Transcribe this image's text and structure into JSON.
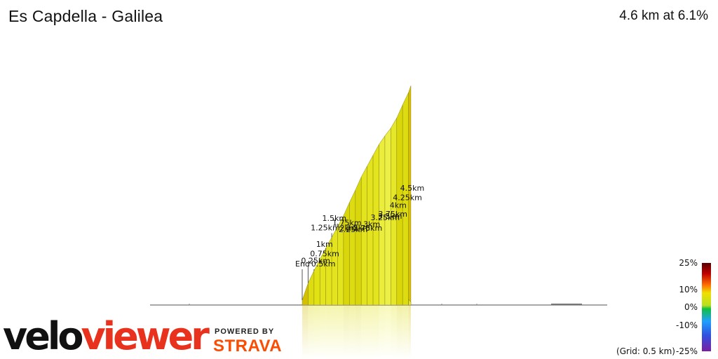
{
  "header": {
    "title": "Es Capdella - Galilea",
    "summary": "4.6 km at 6.1%"
  },
  "chart_data": {
    "type": "area",
    "title": "Es Capdella - Galilea",
    "direction": "reversed, start on the right, End at the left",
    "distance_km": [
      0,
      0.25,
      0.5,
      0.75,
      1.0,
      1.25,
      1.5,
      1.75,
      2.0,
      2.25,
      2.5,
      2.75,
      3.0,
      3.25,
      3.5,
      3.75,
      4.0,
      4.25,
      4.5,
      4.6
    ],
    "elevation_m": [
      285,
      307,
      323,
      338,
      352,
      366,
      380,
      394,
      411,
      427,
      444,
      458,
      472,
      486,
      497,
      507,
      520,
      537,
      553,
      562
    ],
    "gradient_pct": [
      8.8,
      6.4,
      6.0,
      5.6,
      5.6,
      5.6,
      5.6,
      6.8,
      6.4,
      6.8,
      5.6,
      5.6,
      5.6,
      4.4,
      4.0,
      5.2,
      6.8,
      6.4,
      9.0
    ],
    "marker_labels": [
      "End",
      "0.25km",
      "0.5km",
      "0.75km",
      "1km",
      "1.25km",
      "1.5km",
      "1.75km",
      "2km",
      "2.25km",
      "2.5km",
      "2.75km",
      "3km",
      "3.25km",
      "3.5km",
      "3.75km",
      "4km",
      "4.25km",
      "4.5km"
    ],
    "legend": {
      "stops": [
        "25%",
        "10%",
        "0%",
        "-10%",
        "-25%"
      ],
      "stop_values": [
        25,
        10,
        0,
        -10,
        -25
      ],
      "stop_colors": [
        "#6b0000",
        "#e6e600",
        "#10c010",
        "#1ea0ff",
        "#7a1fa2"
      ],
      "grid_note": "(Grid: 0.5 km)"
    },
    "grid_km": 0.5
  },
  "branding": {
    "logo_part1": "velo",
    "logo_part2": "viewer",
    "powered_by": "POWERED BY",
    "strava": "STRAVA"
  }
}
